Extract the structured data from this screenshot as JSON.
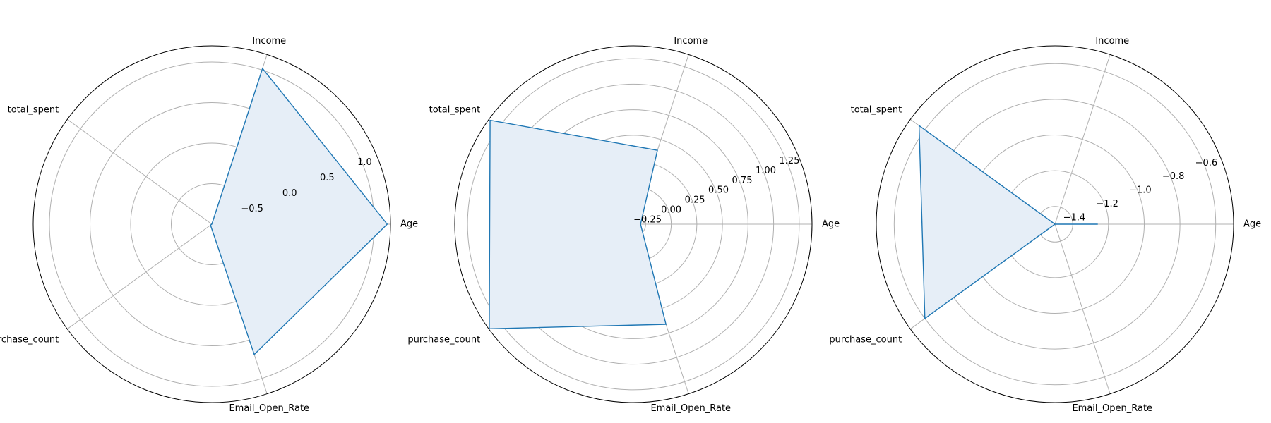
{
  "chart_data": [
    {
      "type": "radar",
      "categories": [
        "Age",
        "Income",
        "total_spent",
        "purchase_count",
        "Email_Open_Rate"
      ],
      "series": [
        {
          "values": [
            1.16,
            1.02,
            -1.0,
            -0.98,
            0.69
          ]
        }
      ],
      "rlim": [
        -1.0,
        1.2
      ],
      "rticks": [
        -0.5,
        0.0,
        0.5,
        1.0
      ],
      "rtick_labels": [
        "−0.5",
        "0.0",
        "0.5",
        "1.0"
      ],
      "grid": true,
      "color": "#1f77b4",
      "fill_color": "#e6eef7"
    },
    {
      "type": "radar",
      "categories": [
        "Age",
        "Income",
        "total_spent",
        "purchase_count",
        "Email_Open_Rate"
      ],
      "series": [
        {
          "values": [
            -0.3,
            0.39,
            1.36,
            1.37,
            0.66
          ]
        }
      ],
      "rlim": [
        -0.37,
        1.375
      ],
      "rticks": [
        -0.25,
        0.0,
        0.25,
        0.5,
        0.75,
        1.0,
        1.25
      ],
      "rtick_labels": [
        "−0.25",
        "0.00",
        "0.25",
        "0.50",
        "0.75",
        "1.00",
        "1.25"
      ],
      "grid": true,
      "color": "#1f77b4",
      "fill_color": "#e6eef7"
    },
    {
      "type": "radar",
      "categories": [
        "Age",
        "Income",
        "total_spent",
        "purchase_count",
        "Email_Open_Rate"
      ],
      "series": [
        {
          "values": [
            -1.26,
            -1.5,
            -0.56,
            -0.6,
            -1.5
          ]
        }
      ],
      "rlim": [
        -1.5,
        -0.5
      ],
      "rticks": [
        -1.4,
        -1.2,
        -1.0,
        -0.8,
        -0.6
      ],
      "rtick_labels": [
        "−1.4",
        "−1.2",
        "−1.0",
        "−0.8",
        "−0.6"
      ],
      "grid": true,
      "color": "#1f77b4",
      "fill_color": "#e6eef7"
    }
  ]
}
